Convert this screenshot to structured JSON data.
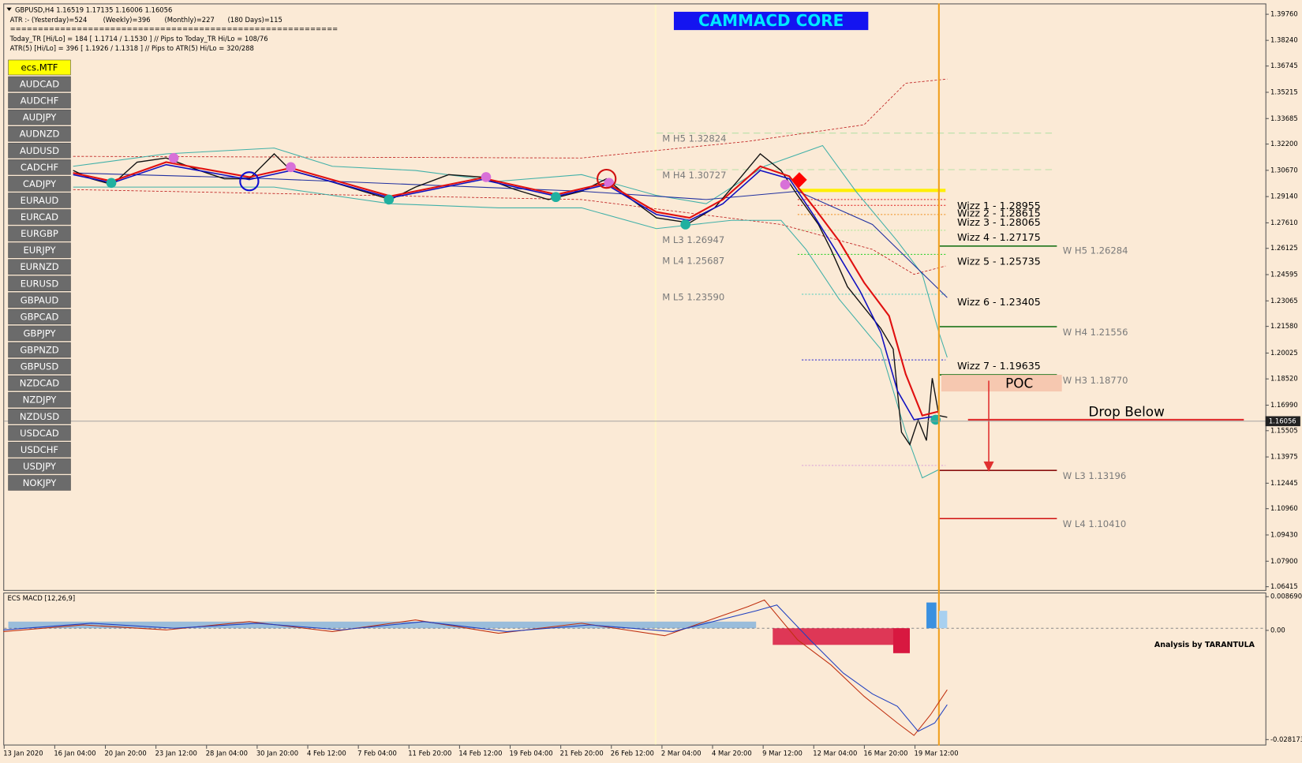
{
  "header": {
    "symbol_line": "GBPUSD,H4  1.16519 1.17135 1.16006 1.16056",
    "atr": "ATR :- (Yesterday)=524",
    "weekly": "(Weekly)=396",
    "monthly": "(Monthly)=227",
    "days180": "(180 Days)=115",
    "separator": "===========================================================",
    "today_tr": "Today_TR [Hi/Lo] = 184 [ 1.1714 / 1.1530 ]  // Pips to Today_TR Hi/Lo  = 108/76",
    "atr5": "ATR(5)     [Hi/Lo] = 396 [ 1.1926 / 1.1318 ]  // Pips to ATR(5) Hi/Lo     = 320/288"
  },
  "title": "CAMMACD CORE",
  "symbols": [
    "ecs.MTF",
    "AUDCAD",
    "AUDCHF",
    "AUDJPY",
    "AUDNZD",
    "AUDUSD",
    "CADCHF",
    "CADJPY",
    "EURAUD",
    "EURCAD",
    "EURGBP",
    "EURJPY",
    "EURNZD",
    "EURUSD",
    "GBPAUD",
    "GBPCAD",
    "GBPJPY",
    "GBPNZD",
    "GBPUSD",
    "NZDCAD",
    "NZDJPY",
    "NZDUSD",
    "USDCAD",
    "USDCHF",
    "USDJPY",
    "NOKJPY"
  ],
  "price_axis": {
    "ticks": [
      {
        "value": 1.3976,
        "label": "1.39760"
      },
      {
        "value": 1.3824,
        "label": "1.38240"
      },
      {
        "value": 1.36745,
        "label": "1.36745"
      },
      {
        "value": 1.35215,
        "label": "1.35215"
      },
      {
        "value": 1.33685,
        "label": "1.33685"
      },
      {
        "value": 1.322,
        "label": "1.32200"
      },
      {
        "value": 1.3067,
        "label": "1.30670"
      },
      {
        "value": 1.2914,
        "label": "1.29140"
      },
      {
        "value": 1.2761,
        "label": "1.27610"
      },
      {
        "value": 1.26125,
        "label": "1.26125"
      },
      {
        "value": 1.24595,
        "label": "1.24595"
      },
      {
        "value": 1.23065,
        "label": "1.23065"
      },
      {
        "value": 1.2158,
        "label": "1.21580"
      },
      {
        "value": 1.20025,
        "label": "1.20025"
      },
      {
        "value": 1.1852,
        "label": "1.18520"
      },
      {
        "value": 1.1699,
        "label": "1.16990"
      },
      {
        "value": 1.15505,
        "label": "1.15505"
      },
      {
        "value": 1.13975,
        "label": "1.13975"
      },
      {
        "value": 1.12445,
        "label": "1.12445"
      },
      {
        "value": 1.1096,
        "label": "1.10960"
      },
      {
        "value": 1.0943,
        "label": "1.09430"
      },
      {
        "value": 1.079,
        "label": "1.07900"
      },
      {
        "value": 1.06415,
        "label": "1.06415"
      }
    ],
    "current": {
      "value": 1.16056,
      "label": "1.16056"
    }
  },
  "levels": {
    "monthly": [
      "M  H5 1.32824",
      "M  H4 1.30727",
      "M  L3 1.26947",
      "M  L4 1.25687",
      "M  L5 1.23590"
    ],
    "wizz": [
      "Wizz 1 - 1.28955",
      "Wizz 2 - 1.28615",
      "Wizz 3 - 1.28065",
      "Wizz 4 - 1.27175",
      "Wizz 5 - 1.25735",
      "Wizz 6 - 1.23405",
      "Wizz 7 - 1.19635"
    ],
    "weekly": [
      "W  H5 1.26284",
      "W  H4 1.21556",
      "W  H3 1.18770",
      "W  L3 1.13196",
      "W  L4 1.10410"
    ]
  },
  "annotations": {
    "poc": "POC",
    "drop": "Drop Below"
  },
  "macd": {
    "title": "ECS MACD [12,26,9]",
    "ticks": [
      0.0086901,
      {
        "value": 0,
        "label": "0.00"
      },
      -0.028173
    ],
    "credit": "Analysis by TARANTULA"
  },
  "time_axis": [
    "13 Jan 2020",
    "16 Jan 04:00",
    "20 Jan 20:00",
    "23 Jan 12:00",
    "28 Jan 04:00",
    "30 Jan 20:00",
    "4 Feb 12:00",
    "7 Feb 04:00",
    "11 Feb 20:00",
    "14 Feb 12:00",
    "19 Feb 04:00",
    "21 Feb 20:00",
    "26 Feb 12:00",
    "2 Mar 04:00",
    "4 Mar 20:00",
    "9 Mar 12:00",
    "12 Mar 04:00",
    "16 Mar 20:00",
    "19 Mar 12:00"
  ]
}
